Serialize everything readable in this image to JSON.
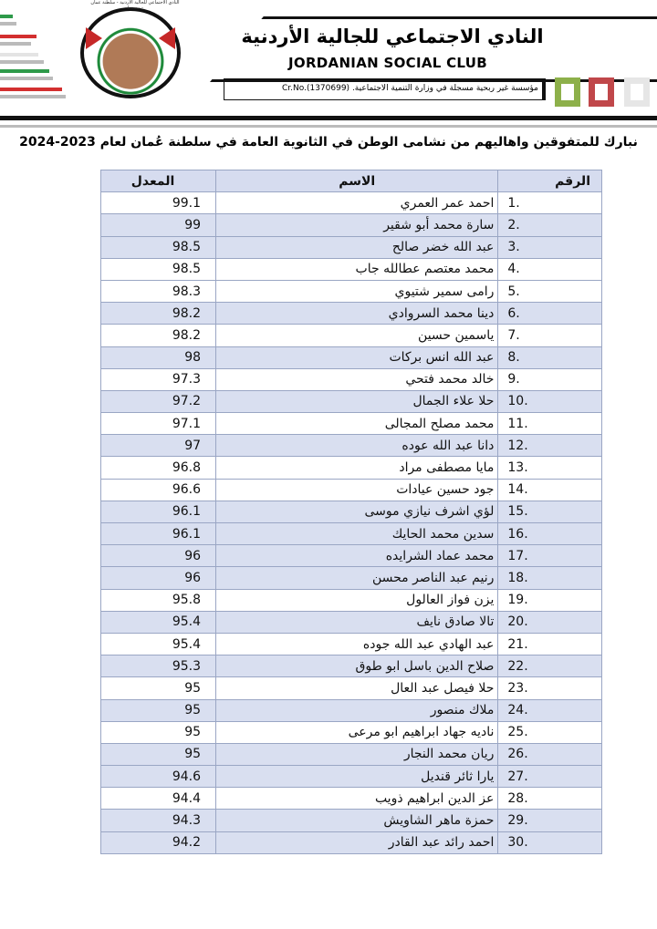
{
  "header": {
    "logo_text": "النادي الاجتماعي للجالية الأردنية - سلطنة عمان - مسقط",
    "title_ar": "النادي الاجتماعي للجالية الأردنية",
    "title_en": "JORDANIAN SOCIAL CLUB",
    "registration": "مؤسسة غير ربحية مسجلة في وزارة التنمية الاجتماعية. Cr.No.(1370699)",
    "colors": {
      "green": "#8db04a",
      "red": "#c0474a",
      "grey": "#e6e6e6"
    }
  },
  "heading": "نبارك للمتفوقين واهاليهم من نشامى الوطن في الثانوية العامة في سلطنة عُمان لعام 2023-2024",
  "table": {
    "columns": {
      "number": "الرقم",
      "name": "الاسم",
      "grade": "المعدل"
    },
    "rows": [
      {
        "number": "1.",
        "name": "احمد عمر العمري",
        "grade": "99.1",
        "shaded": false
      },
      {
        "number": "2.",
        "name": "سارة محمد أبو شقير",
        "grade": "99",
        "shaded": true
      },
      {
        "number": "3.",
        "name": "عبد الله خضر صالح",
        "grade": "98.5",
        "shaded": true
      },
      {
        "number": "4.",
        "name": "محمد معتصم عطالله جاب",
        "grade": "98.5",
        "shaded": false
      },
      {
        "number": "5.",
        "name": "رامى سمير شتيوي",
        "grade": "98.3",
        "shaded": false
      },
      {
        "number": "6.",
        "name": "دينا محمد السروادي",
        "grade": "98.2",
        "shaded": true
      },
      {
        "number": "7.",
        "name": "ياسمين حسين",
        "grade": "98.2",
        "shaded": false
      },
      {
        "number": "8.",
        "name": "عبد الله انس بركات",
        "grade": "98",
        "shaded": true
      },
      {
        "number": "9.",
        "name": "خالد محمد فتحي",
        "grade": "97.3",
        "shaded": false
      },
      {
        "number": "10.",
        "name": "حلا علاء الجمال",
        "grade": "97.2",
        "shaded": true
      },
      {
        "number": "11.",
        "name": "محمد مصلح المجالى",
        "grade": "97.1",
        "shaded": false
      },
      {
        "number": "12.",
        "name": "دانا عبد الله عوده",
        "grade": "97",
        "shaded": true
      },
      {
        "number": "13.",
        "name": "مايا مصطفى مراد",
        "grade": "96.8",
        "shaded": false
      },
      {
        "number": "14.",
        "name": "جود حسين عيادات",
        "grade": "96.6",
        "shaded": false
      },
      {
        "number": "15.",
        "name": "لؤي اشرف نيازي موسى",
        "grade": "96.1",
        "shaded": true
      },
      {
        "number": "16.",
        "name": "سدين محمد الحايك",
        "grade": "96.1",
        "shaded": true
      },
      {
        "number": "17.",
        "name": "محمد عماد الشرايده",
        "grade": "96",
        "shaded": true
      },
      {
        "number": "18.",
        "name": "رنيم عبد الناصر محسن",
        "grade": "96",
        "shaded": true
      },
      {
        "number": "19.",
        "name": "يزن فواز العالول",
        "grade": "95.8",
        "shaded": false
      },
      {
        "number": "20.",
        "name": "تالا صادق نايف",
        "grade": "95.4",
        "shaded": true
      },
      {
        "number": "21.",
        "name": "عبد الهادي عبد الله جوده",
        "grade": "95.4",
        "shaded": false
      },
      {
        "number": "22.",
        "name": "صلاح الدين باسل ابو طوق",
        "grade": "95.3",
        "shaded": true
      },
      {
        "number": "23.",
        "name": "حلا فيصل عبد العال",
        "grade": "95",
        "shaded": false
      },
      {
        "number": "24.",
        "name": "ملاك منصور",
        "grade": "95",
        "shaded": true
      },
      {
        "number": "25.",
        "name": "ناديه جهاد ابراهيم ابو مرعى",
        "grade": "95",
        "shaded": false
      },
      {
        "number": "26.",
        "name": "ريان محمد النجار",
        "grade": "95",
        "shaded": true
      },
      {
        "number": "27.",
        "name": "يارا ثائر قنديل",
        "grade": "94.6",
        "shaded": true
      },
      {
        "number": "28.",
        "name": "عز الدين ابراهيم ذويب",
        "grade": "94.4",
        "shaded": false
      },
      {
        "number": "29.",
        "name": "حمزة ماهر الشاويش",
        "grade": "94.3",
        "shaded": true
      },
      {
        "number": "30.",
        "name": "احمد رائد عبد القادر",
        "grade": "94.2",
        "shaded": true
      }
    ]
  }
}
